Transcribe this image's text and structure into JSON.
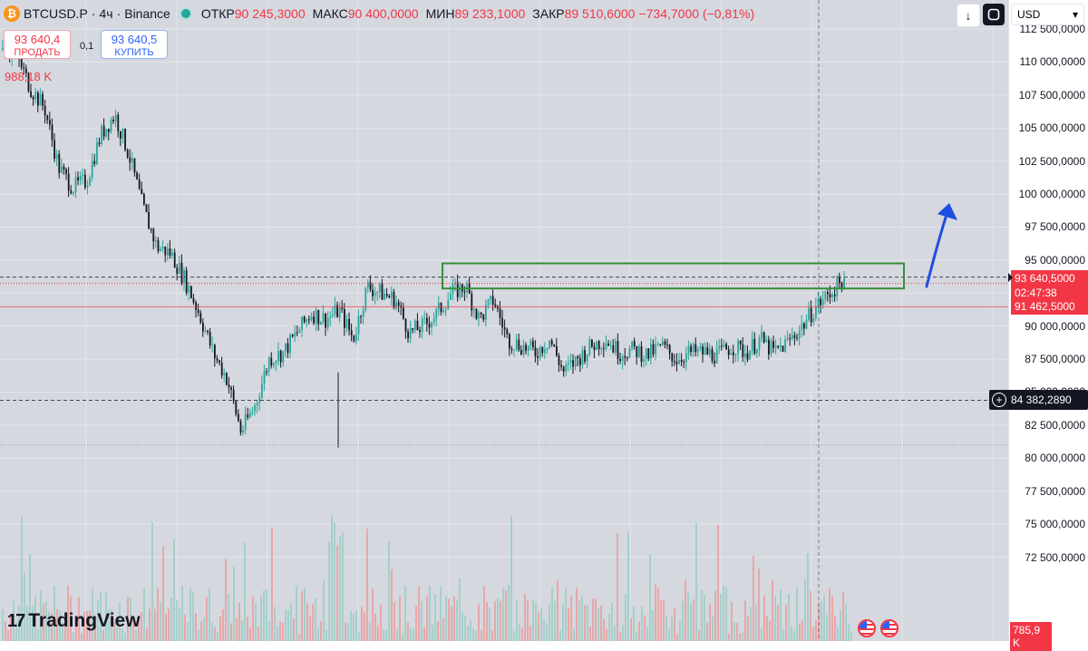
{
  "header": {
    "symbol": "BTCUSD.P",
    "interval": "4ч",
    "exchange": "Binance",
    "separator": "·",
    "open_label": "ОТКР",
    "open_value": "90 245,3000",
    "high_label": "МАКС",
    "high_value": "90 400,0000",
    "low_label": "МИН",
    "low_value": "89 233,1000",
    "close_label": "ЗАКР",
    "close_value": "89 510,6000",
    "change_value": "−734,7000 (−0,81%)",
    "coin_glyph": "₿"
  },
  "trade": {
    "sell_price": "93 640,4",
    "sell_label": "ПРОДАТЬ",
    "buy_price": "93 640,5",
    "buy_label": "КУПИТЬ",
    "spread": "0,1",
    "volume": "988,18 K"
  },
  "toolbar": {
    "down_icon": "↓",
    "currency": "USD",
    "currency_caret": "▾"
  },
  "axis": {
    "ticks": [
      "112 500,0000",
      "110 000,0000",
      "107 500,0000",
      "105 000,0000",
      "102 500,0000",
      "100 000,0000",
      "97 500,0000",
      "95 000,0000",
      "90 000,0000",
      "87 500,0000",
      "85 000,0000",
      "82 500,0000",
      "80 000,0000",
      "77 500,0000",
      "75 000,0000",
      "72 500,0000"
    ],
    "last_price": "93 640,5000",
    "countdown": "02:47:38",
    "level_price": "91 462,5000",
    "crosshair_price": "84 382,2890",
    "volume_tag": "785,9 K"
  },
  "brand": {
    "name": "TradingView",
    "mark": "17"
  },
  "colors": {
    "up": "#26a69a",
    "down": "#131722",
    "accent_red": "#f23645",
    "accent_blue": "#2962ff",
    "box": "#388e3c",
    "arrow": "#1e4fe3"
  },
  "chart_data": {
    "type": "candlestick",
    "series": [
      {
        "name": "BTCUSD.P",
        "close_path": [
          111000,
          110500,
          108000,
          106500,
          102000,
          100500,
          101000,
          104500,
          106000,
          103000,
          99000,
          96000,
          95500,
          93500,
          91000,
          88000,
          86000,
          82000,
          84000,
          87500,
          88000,
          89500,
          91000,
          90500,
          91200,
          89000,
          93000,
          92500,
          92000,
          89500,
          90000,
          91000,
          92500,
          93000,
          90500,
          92000,
          89000,
          88500,
          88000,
          89000,
          86500,
          87500,
          88500,
          89000,
          88000,
          88200,
          87800,
          88500,
          87500,
          88000,
          88000,
          87800,
          88500,
          88000,
          89000,
          88000,
          88800,
          90000,
          91500,
          92500,
          93640
        ]
      }
    ],
    "last": 93640.5,
    "level": 91462.5,
    "crosshair": 84382.289,
    "resistance_zone": [
      92850,
      94750
    ],
    "ylim": [
      71200,
      114000
    ]
  }
}
